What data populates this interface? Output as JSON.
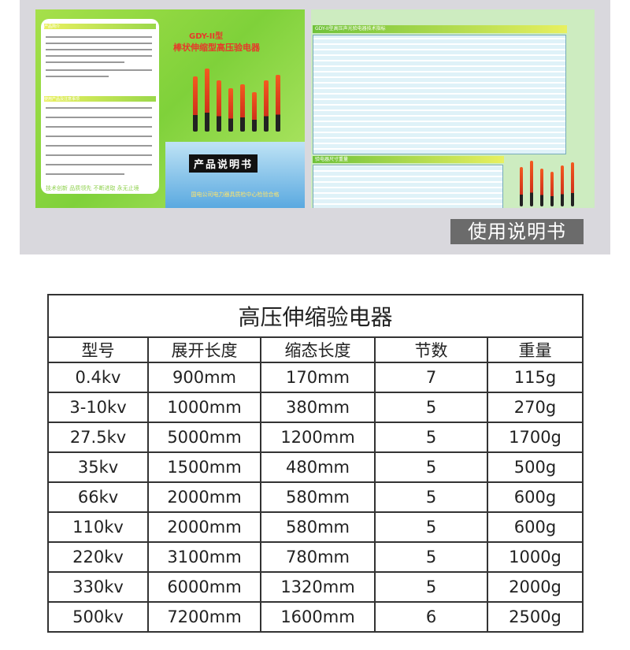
{
  "photo": {
    "left_brochure": {
      "intro_heading": "产品简介",
      "features_heading": "使用产品及注意事项",
      "slogan": "技术创新  品质领先  不断进取  永无止境",
      "model": "GDY-II型",
      "product_name": "棒状伸缩型高压验电器",
      "manual_title": "产品说明书",
      "footer": "国电公司电力器具质检中心检验合格"
    },
    "right_brochure": {
      "spec_heading": "GDY-II型高压声光验电器技术指标",
      "size_heading": "验电器尺寸重量"
    },
    "caption": "使用说明书",
    "colors": {
      "brochure_green": "#7fd13a",
      "title_red": "#e63a2a",
      "caption_bg": "#6b6b6b"
    }
  },
  "table": {
    "title": "高压伸缩验电器",
    "headers": [
      "型号",
      "展开长度",
      "缩态长度",
      "节数",
      "重量"
    ],
    "rows": [
      [
        "0.4kv",
        "900mm",
        "170mm",
        "7",
        "115g"
      ],
      [
        "3-10kv",
        "1000mm",
        "380mm",
        "5",
        "270g"
      ],
      [
        "27.5kv",
        "5000mm",
        "1200mm",
        "5",
        "1700g"
      ],
      [
        "35kv",
        "1500mm",
        "480mm",
        "5",
        "500g"
      ],
      [
        "66kv",
        "2000mm",
        "580mm",
        "5",
        "600g"
      ],
      [
        "110kv",
        "2000mm",
        "580mm",
        "5",
        "600g"
      ],
      [
        "220kv",
        "3100mm",
        "780mm",
        "5",
        "1000g"
      ],
      [
        "330kv",
        "6000mm",
        "1320mm",
        "5",
        "2000g"
      ],
      [
        "500kv",
        "7200mm",
        "1600mm",
        "6",
        "2500g"
      ]
    ]
  }
}
